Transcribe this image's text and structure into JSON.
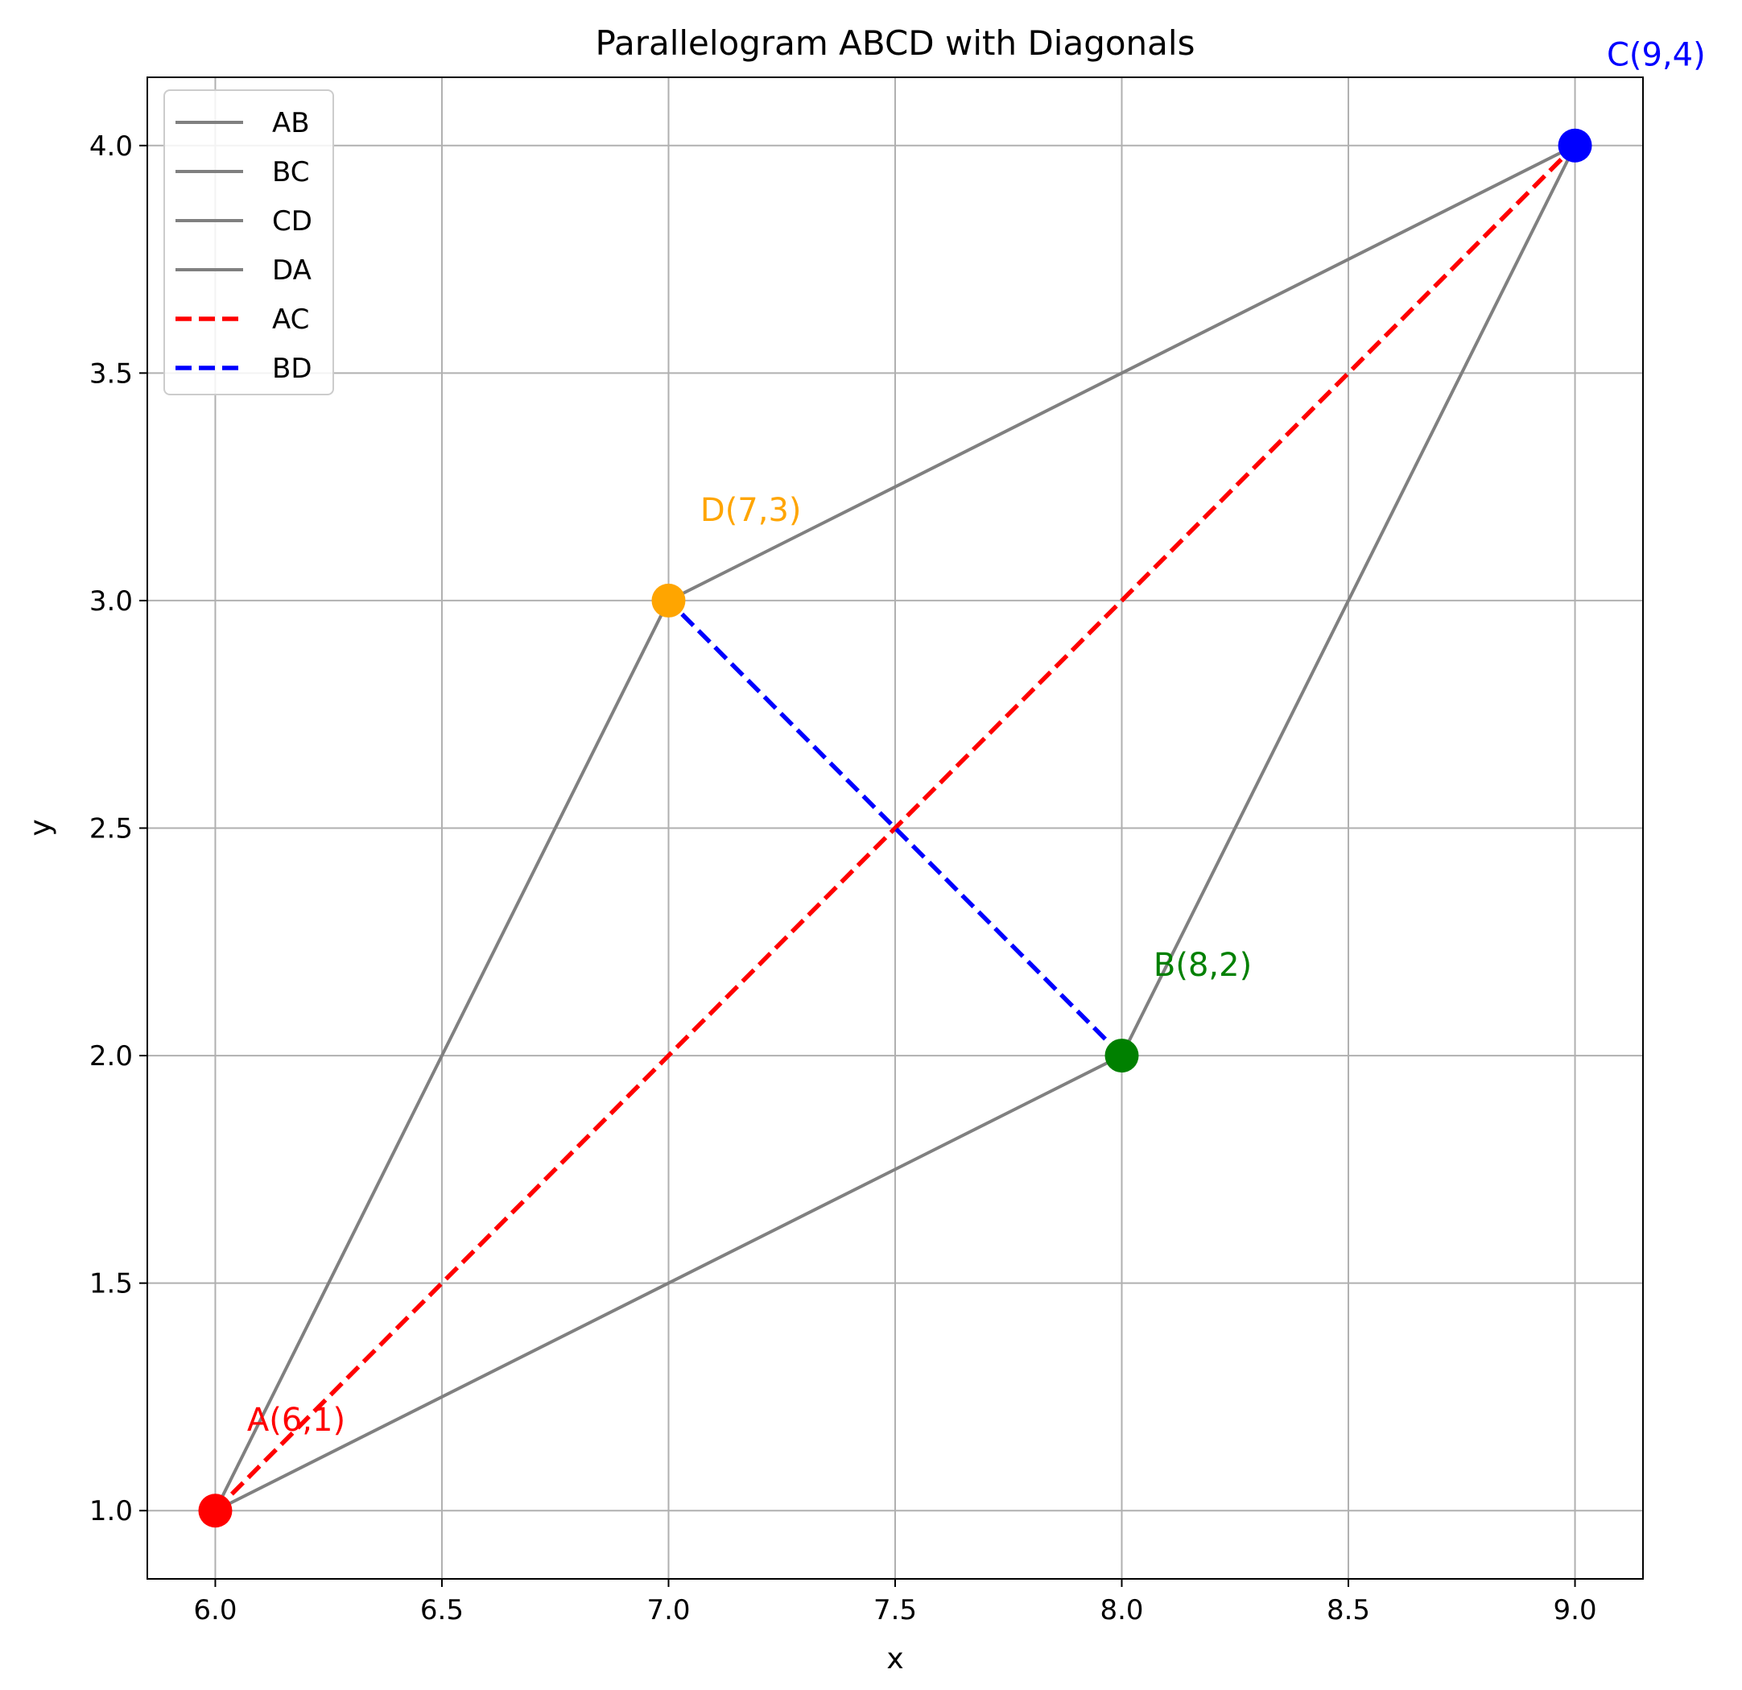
{
  "chart_data": {
    "type": "line",
    "title": "Parallelogram ABCD with Diagonals",
    "xlabel": "x",
    "ylabel": "y",
    "xlim": [
      5.85,
      9.15
    ],
    "ylim": [
      0.85,
      4.15
    ],
    "xticks": [
      6.0,
      6.5,
      7.0,
      7.5,
      8.0,
      8.5,
      9.0
    ],
    "xtick_labels": [
      "6.0",
      "6.5",
      "7.0",
      "7.5",
      "8.0",
      "8.5",
      "9.0"
    ],
    "yticks": [
      1.0,
      1.5,
      2.0,
      2.5,
      3.0,
      3.5,
      4.0
    ],
    "ytick_labels": [
      "1.0",
      "1.5",
      "2.0",
      "2.5",
      "3.0",
      "3.5",
      "4.0"
    ],
    "grid": true,
    "legend_position": "top-left",
    "series": [
      {
        "name": "AB",
        "color": "#808080",
        "style": "solid",
        "x": [
          6,
          8
        ],
        "y": [
          1,
          2
        ]
      },
      {
        "name": "BC",
        "color": "#808080",
        "style": "solid",
        "x": [
          8,
          9
        ],
        "y": [
          2,
          4
        ]
      },
      {
        "name": "CD",
        "color": "#808080",
        "style": "solid",
        "x": [
          9,
          7
        ],
        "y": [
          4,
          3
        ]
      },
      {
        "name": "DA",
        "color": "#808080",
        "style": "solid",
        "x": [
          7,
          6
        ],
        "y": [
          3,
          1
        ]
      },
      {
        "name": "AC",
        "color": "#ff0000",
        "style": "dashed",
        "x": [
          6,
          9
        ],
        "y": [
          1,
          4
        ]
      },
      {
        "name": "BD",
        "color": "#0000ff",
        "style": "dashed",
        "x": [
          8,
          7
        ],
        "y": [
          2,
          3
        ]
      }
    ],
    "points": [
      {
        "label": "A(6,1)",
        "x": 6,
        "y": 1,
        "color": "#ff0000"
      },
      {
        "label": "B(8,2)",
        "x": 8,
        "y": 2,
        "color": "#008000"
      },
      {
        "label": "C(9,4)",
        "x": 9,
        "y": 4,
        "color": "#0000ff"
      },
      {
        "label": "D(7,3)",
        "x": 7,
        "y": 3,
        "color": "#ffa500"
      }
    ]
  }
}
